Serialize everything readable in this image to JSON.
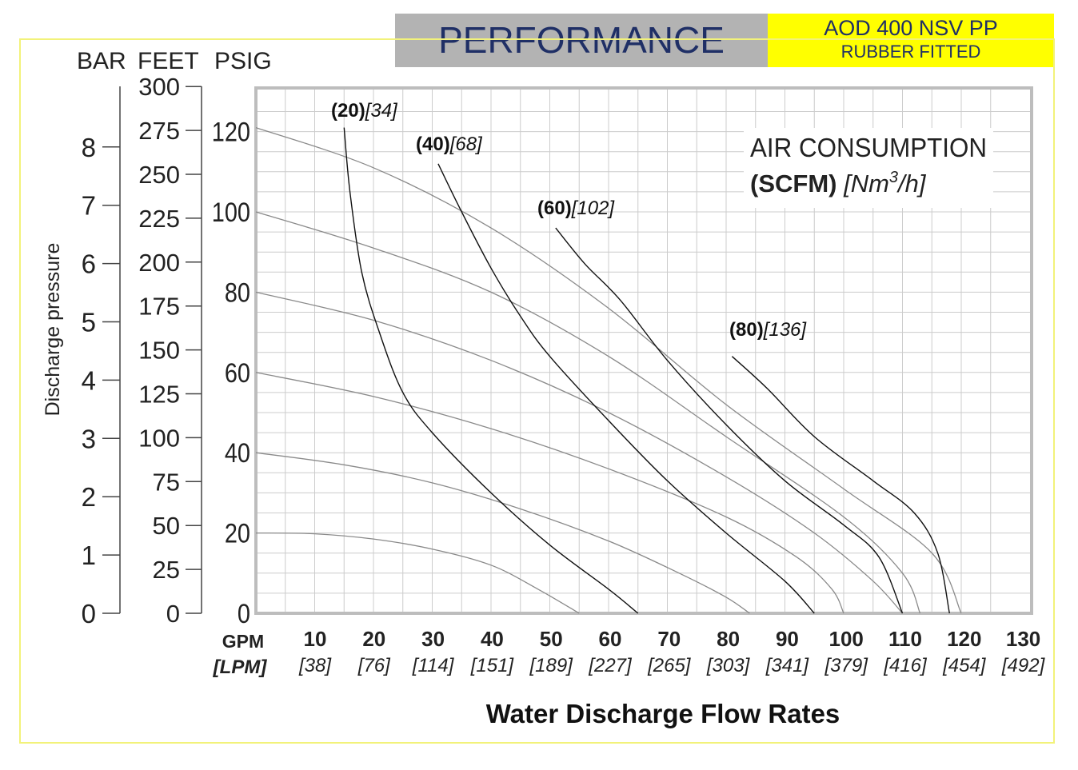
{
  "header": {
    "title": "PERFORMANCE",
    "model_line1": "AOD 400 NSV PP",
    "model_line2": "RUBBER FITTED"
  },
  "colors": {
    "frame_border": "#f2f27a",
    "header_gray": "#b3b3b3",
    "header_yellow": "#ffff00",
    "header_text": "#1f2f66",
    "grid": "#cccccc",
    "plot_border": "#bdbdbd",
    "air_curve": "#8a8a8a",
    "flow_curve": "#111111"
  },
  "chart_data": {
    "type": "line",
    "xlabel": "Water Discharge Flow Rates",
    "xunit_primary": "GPM",
    "xunit_secondary": "[LPM]",
    "x_ticks": [
      {
        "gpm": "10",
        "lpm": "[38]"
      },
      {
        "gpm": "20",
        "lpm": "[76]"
      },
      {
        "gpm": "30",
        "lpm": "[114]"
      },
      {
        "gpm": "40",
        "lpm": "[151]"
      },
      {
        "gpm": "50",
        "lpm": "[189]"
      },
      {
        "gpm": "60",
        "lpm": "[227]"
      },
      {
        "gpm": "70",
        "lpm": "[265]"
      },
      {
        "gpm": "80",
        "lpm": "[303]"
      },
      {
        "gpm": "90",
        "lpm": "[341]"
      },
      {
        "gpm": "100",
        "lpm": "[379]"
      },
      {
        "gpm": "110",
        "lpm": "[416]"
      },
      {
        "gpm": "120",
        "lpm": "[454]"
      },
      {
        "gpm": "130",
        "lpm": "[492]"
      }
    ],
    "xlim": [
      0,
      130
    ],
    "ylim": [
      0,
      130
    ],
    "ylabel": "Discharge pressure",
    "axis_unit_labels": {
      "bar": "BAR",
      "feet": "FEET",
      "psig": "PSIG"
    },
    "y_psig_ticks": [
      "0",
      "20",
      "40",
      "60",
      "80",
      "100",
      "120"
    ],
    "y_feet_ticks": [
      "0",
      "25",
      "50",
      "75",
      "100",
      "125",
      "150",
      "175",
      "200",
      "225",
      "250",
      "275",
      "300"
    ],
    "y_bar_ticks": [
      "0",
      "1",
      "2",
      "3",
      "4",
      "5",
      "6",
      "7",
      "8"
    ],
    "grid": true,
    "legend": {
      "title": "AIR CONSUMPTION",
      "units_bold": "(SCFM)",
      "units_italic_pre": "[Nm",
      "units_sup": "3",
      "units_italic_post": "/h]"
    },
    "air_pressure_curves": [
      {
        "psig": 20,
        "points": [
          [
            0,
            20
          ],
          [
            10,
            19.8
          ],
          [
            20,
            18.5
          ],
          [
            30,
            16
          ],
          [
            40,
            12
          ],
          [
            48,
            6
          ],
          [
            55,
            0
          ]
        ]
      },
      {
        "psig": 40,
        "points": [
          [
            0,
            40
          ],
          [
            15,
            37
          ],
          [
            30,
            32.5
          ],
          [
            45,
            26
          ],
          [
            60,
            18
          ],
          [
            72,
            10
          ],
          [
            80,
            4
          ],
          [
            84,
            0
          ]
        ]
      },
      {
        "psig": 60,
        "points": [
          [
            0,
            60
          ],
          [
            20,
            54
          ],
          [
            40,
            46
          ],
          [
            60,
            36
          ],
          [
            80,
            24
          ],
          [
            92,
            14
          ],
          [
            98,
            6
          ],
          [
            100,
            0
          ]
        ]
      },
      {
        "psig": 80,
        "points": [
          [
            0,
            80
          ],
          [
            20,
            73
          ],
          [
            40,
            63
          ],
          [
            60,
            50
          ],
          [
            80,
            34
          ],
          [
            95,
            20
          ],
          [
            105,
            8
          ],
          [
            110,
            0
          ]
        ]
      },
      {
        "psig": 100,
        "points": [
          [
            0,
            100
          ],
          [
            20,
            91
          ],
          [
            40,
            80
          ],
          [
            60,
            64
          ],
          [
            80,
            44
          ],
          [
            100,
            24
          ],
          [
            110,
            10
          ],
          [
            113,
            0
          ]
        ]
      },
      {
        "psig": 120,
        "points": [
          [
            0,
            121
          ],
          [
            20,
            111
          ],
          [
            40,
            96
          ],
          [
            60,
            76
          ],
          [
            80,
            52
          ],
          [
            100,
            31
          ],
          [
            115,
            15
          ],
          [
            120,
            0
          ]
        ]
      }
    ],
    "flow_curves": [
      {
        "scfm": "(20)",
        "nm3h": "[34]",
        "points": [
          [
            15,
            121
          ],
          [
            16,
            105
          ],
          [
            18,
            85
          ],
          [
            21,
            70
          ],
          [
            25,
            55
          ],
          [
            30,
            45
          ],
          [
            40,
            30
          ],
          [
            50,
            17
          ],
          [
            60,
            6
          ],
          [
            65,
            0
          ]
        ]
      },
      {
        "scfm": "(40)",
        "nm3h": "[68]",
        "points": [
          [
            31,
            112
          ],
          [
            35,
            100
          ],
          [
            40,
            86
          ],
          [
            45,
            74
          ],
          [
            50,
            64
          ],
          [
            60,
            48
          ],
          [
            70,
            33
          ],
          [
            80,
            20
          ],
          [
            90,
            8
          ],
          [
            95,
            0
          ]
        ]
      },
      {
        "scfm": "(60)",
        "nm3h": "[102]",
        "points": [
          [
            51,
            96
          ],
          [
            56,
            87
          ],
          [
            62,
            78
          ],
          [
            70,
            63
          ],
          [
            80,
            47
          ],
          [
            90,
            33
          ],
          [
            100,
            22
          ],
          [
            106,
            14
          ],
          [
            110,
            0
          ]
        ]
      },
      {
        "scfm": "(80)",
        "nm3h": "[136]",
        "points": [
          [
            81,
            64
          ],
          [
            87,
            56
          ],
          [
            95,
            44
          ],
          [
            105,
            33
          ],
          [
            112,
            25
          ],
          [
            116,
            15
          ],
          [
            118,
            0
          ]
        ]
      }
    ]
  }
}
